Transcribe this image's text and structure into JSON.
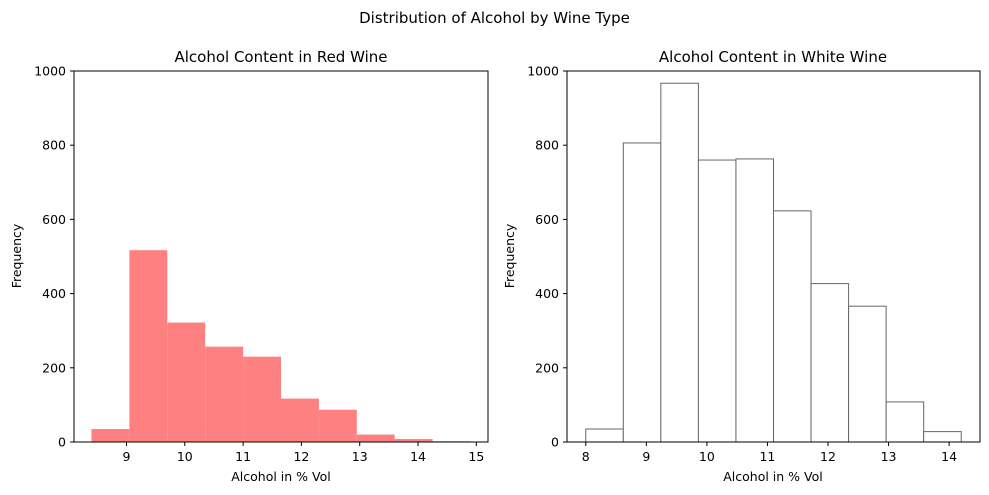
{
  "figure": {
    "suptitle": "Distribution of Alcohol by Wine Type"
  },
  "chart_data": [
    {
      "type": "bar",
      "title": "Alcohol Content in Red Wine",
      "xlabel": "Alcohol in % Vol",
      "ylabel": "Frequency",
      "xlim": [
        8.1,
        15.2
      ],
      "ylim": [
        0,
        1000
      ],
      "xticks": [
        9,
        10,
        11,
        12,
        13,
        14,
        15
      ],
      "yticks": [
        0,
        200,
        400,
        600,
        800,
        1000
      ],
      "color": "#ff8080",
      "edgecolor": null,
      "bin_edges": [
        8.4,
        9.05,
        9.7,
        10.35,
        11.0,
        11.65,
        12.3,
        12.95,
        13.6,
        14.25,
        14.9
      ],
      "values": [
        35,
        517,
        322,
        257,
        230,
        117,
        87,
        20,
        8,
        2
      ],
      "grid": false,
      "legend": null
    },
    {
      "type": "bar",
      "title": "Alcohol Content in White Wine",
      "xlabel": "Alcohol in % Vol",
      "ylabel": "Frequency",
      "xlim": [
        7.69,
        14.51
      ],
      "ylim": [
        0,
        1000
      ],
      "xticks": [
        8,
        9,
        10,
        11,
        12,
        13,
        14
      ],
      "yticks": [
        0,
        200,
        400,
        600,
        800,
        1000
      ],
      "color": "#ffffff",
      "edgecolor": "#666666",
      "bin_edges": [
        8.0,
        8.62,
        9.24,
        9.86,
        10.48,
        11.1,
        11.72,
        12.34,
        12.96,
        13.58,
        14.2
      ],
      "values": [
        35,
        806,
        967,
        760,
        763,
        623,
        427,
        366,
        108,
        28
      ],
      "grid": false,
      "legend": null
    }
  ]
}
